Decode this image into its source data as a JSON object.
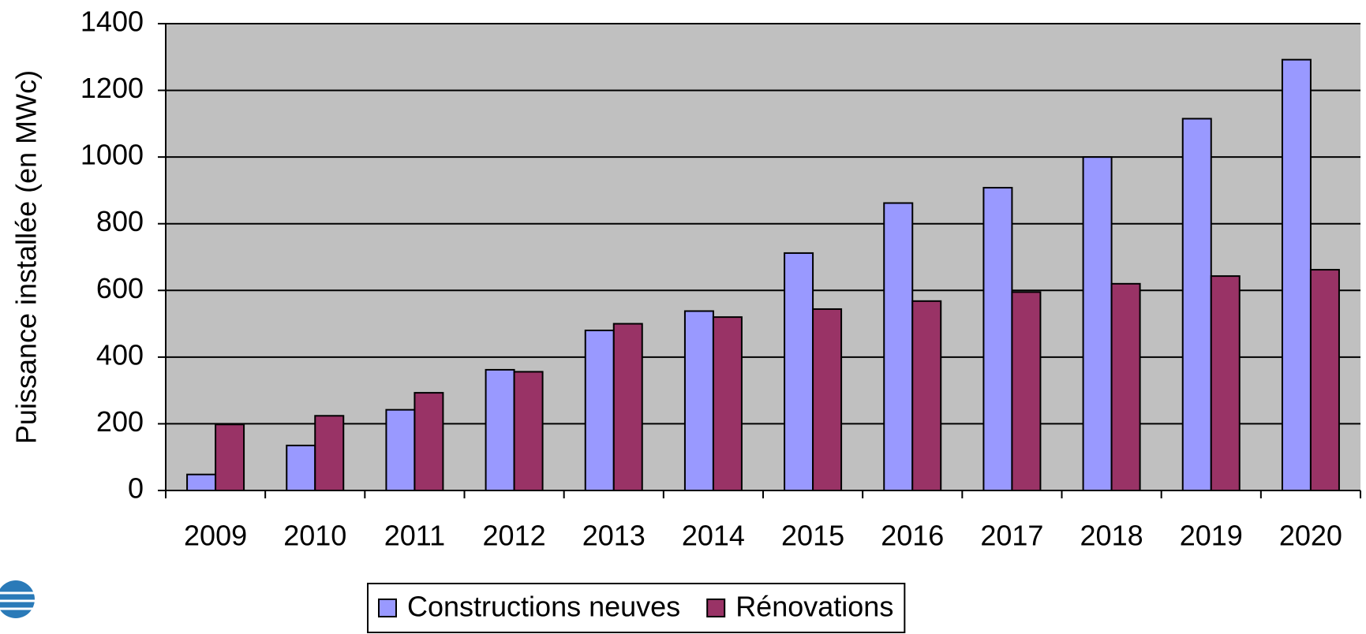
{
  "chart_data": {
    "type": "bar",
    "ylabel": "Puissance installée (en MWc)",
    "categories": [
      "2009",
      "2010",
      "2011",
      "2012",
      "2013",
      "2014",
      "2015",
      "2016",
      "2017",
      "2018",
      "2019",
      "2020"
    ],
    "series": [
      {
        "name": "Constructions neuves",
        "color": "#9999ff",
        "values": [
          48,
          135,
          242,
          362,
          480,
          538,
          712,
          862,
          908,
          1000,
          1115,
          1292
        ]
      },
      {
        "name": "Rénovations",
        "color": "#993366",
        "values": [
          198,
          224,
          293,
          356,
          500,
          520,
          544,
          568,
          595,
          620,
          643,
          662
        ]
      }
    ],
    "ylim": [
      0,
      1400
    ],
    "yticks": [
      0,
      200,
      400,
      600,
      800,
      1000,
      1200,
      1400
    ],
    "grid": true,
    "legend": "bottom"
  }
}
